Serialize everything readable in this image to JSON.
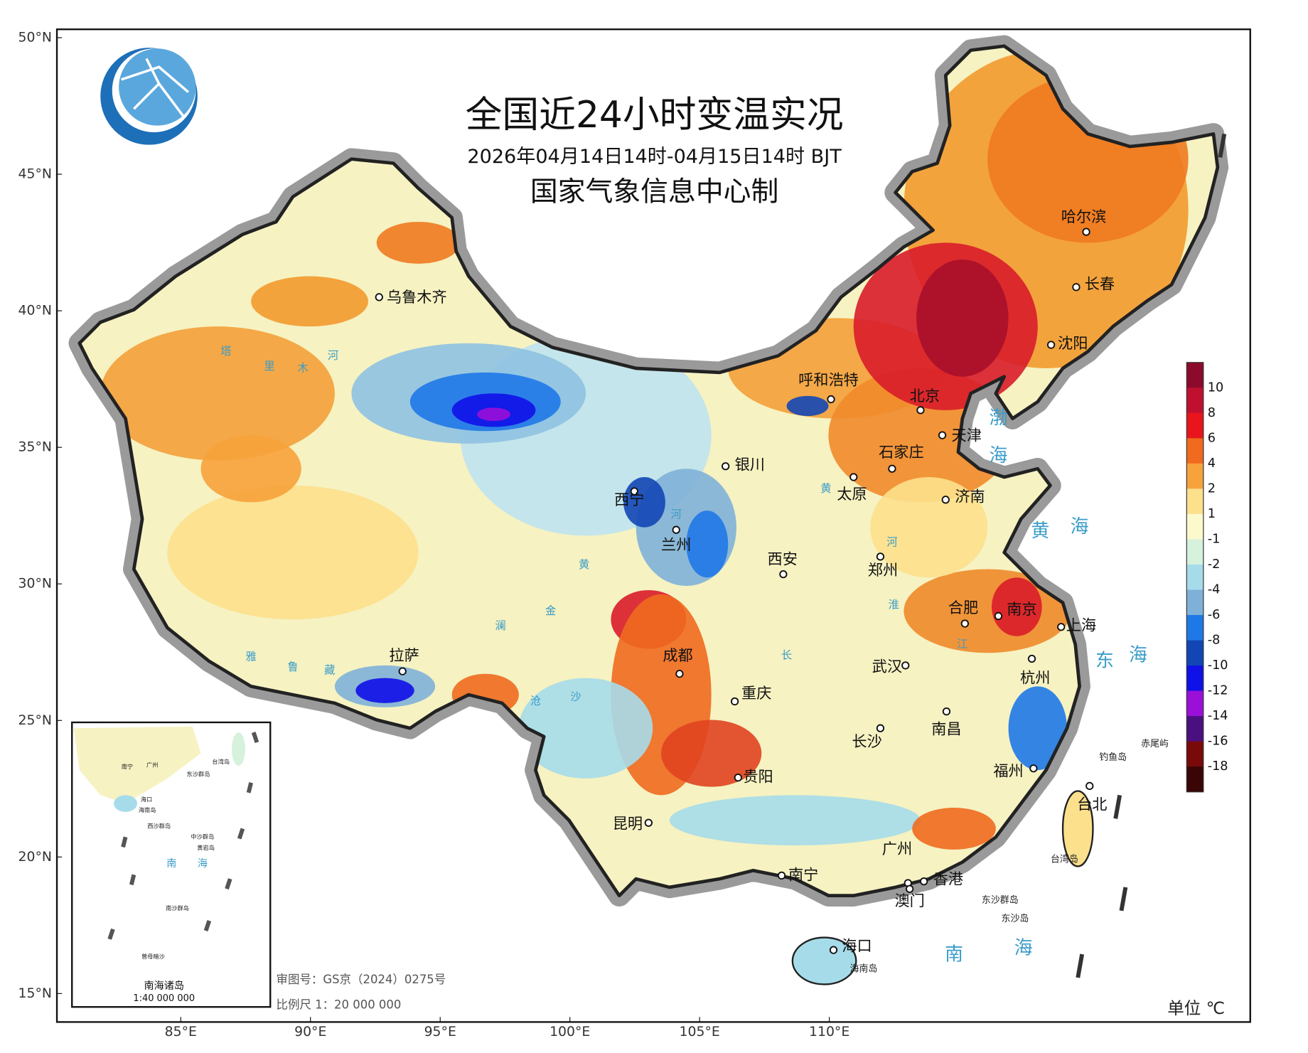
{
  "header": {
    "title": "全国近24小时变温实况",
    "subtitle": "2026年04月14日14时-04月15日14时 BJT",
    "producer": "国家气象信息中心制"
  },
  "map": {
    "lat_ticks": [
      {
        "value": 50,
        "label": "50°N"
      },
      {
        "value": 45,
        "label": "45°N"
      },
      {
        "value": 40,
        "label": "40°N"
      },
      {
        "value": 35,
        "label": "35°N"
      },
      {
        "value": 30,
        "label": "30°N"
      },
      {
        "value": 25,
        "label": "25°N"
      },
      {
        "value": 20,
        "label": "20°N"
      },
      {
        "value": 15,
        "label": "15°N"
      }
    ],
    "lon_ticks": [
      {
        "value": 85,
        "label": "85°E"
      },
      {
        "value": 90,
        "label": "90°E"
      },
      {
        "value": 95,
        "label": "95°E"
      },
      {
        "value": 100,
        "label": "100°E"
      },
      {
        "value": 105,
        "label": "105°E"
      },
      {
        "value": 110,
        "label": "110°E"
      }
    ],
    "cities": [
      "乌鲁木齐",
      "呼和浩特",
      "哈尔滨",
      "长春",
      "沈阳",
      "北京",
      "天津",
      "石家庄",
      "银川",
      "太原",
      "济南",
      "西宁",
      "兰州",
      "西安",
      "郑州",
      "合肥",
      "南京",
      "上海",
      "成都",
      "武汉",
      "杭州",
      "拉萨",
      "重庆",
      "长沙",
      "南昌",
      "福州",
      "贵阳",
      "昆明",
      "台北",
      "广州",
      "香港",
      "澳门",
      "南宁",
      "海口"
    ],
    "places": [
      "钓鱼岛",
      "赤尾屿",
      "台湾岛",
      "东沙群岛",
      "东沙岛",
      "海南岛"
    ],
    "seas": [
      "渤",
      "海",
      "黄",
      "海",
      "东",
      "海",
      "南",
      "海"
    ],
    "rivers": [
      "塔",
      "里",
      "木",
      "河",
      "黄",
      "河",
      "黄",
      "河",
      "淮",
      "长",
      "江",
      "雅",
      "鲁",
      "藏",
      "澜",
      "金",
      "沧",
      "沙"
    ]
  },
  "legend": {
    "labels": [
      10,
      8,
      6,
      4,
      2,
      1,
      -1,
      -2,
      -4,
      -6,
      -8,
      -10,
      -12,
      -14,
      -16,
      -18
    ],
    "colors": [
      "#8c0b2c",
      "#c0102f",
      "#e8161c",
      "#f06a1f",
      "#f7a23a",
      "#fde08c",
      "#fcfacd",
      "#d6f1dc",
      "#a6dcea",
      "#7fb1d8",
      "#1f78e8",
      "#1346b5",
      "#1010e8",
      "#9a10d8",
      "#4b1080",
      "#7a0a0a",
      "#3a0505"
    ]
  },
  "inset": {
    "labels": [
      "南宁",
      "广州",
      "台湾岛",
      "东沙群岛",
      "海口",
      "海南岛",
      "西沙群岛",
      "中沙群岛",
      "黄岩岛",
      "南",
      "海",
      "南沙群岛",
      "曾母暗沙"
    ],
    "title": "南海诸岛",
    "scale": "1:40 000 000"
  },
  "footer": {
    "approval": "审图号：GS京（2024）0275号",
    "scale": "比例尺  1：20 000 000",
    "unit": "单位 ℃"
  }
}
